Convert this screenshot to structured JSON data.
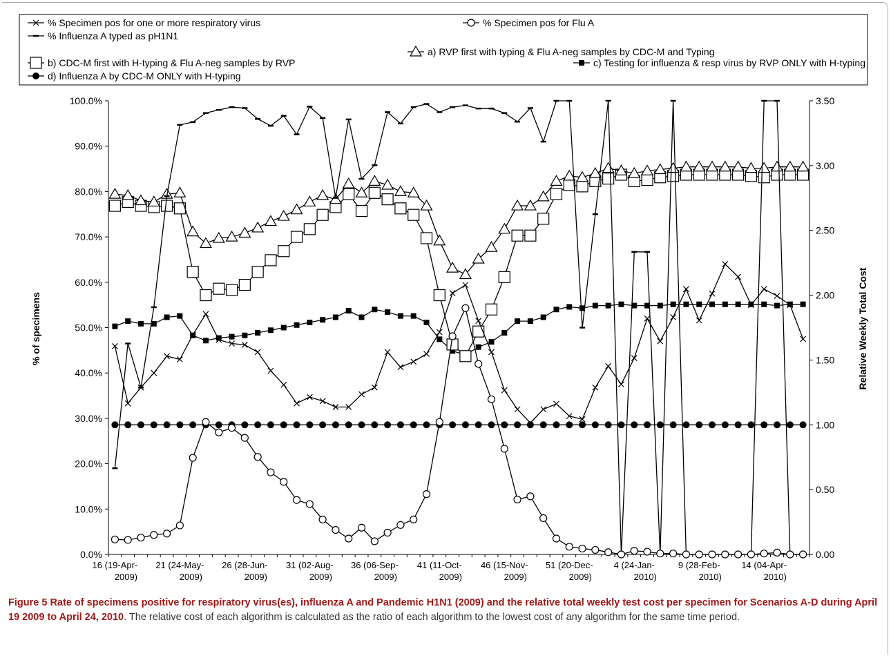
{
  "chart_data": {
    "type": "line",
    "ylabel": "% of specimens",
    "y2label": "Relative Weekly Total Cost",
    "ylim": [
      0,
      100
    ],
    "y2lim": [
      0,
      3.5
    ],
    "yticks": [
      "0.0%",
      "10.0%",
      "20.0%",
      "30.0%",
      "40.0%",
      "50.0%",
      "60.0%",
      "70.0%",
      "80.0%",
      "90.0%",
      "100.0%"
    ],
    "y2ticks": [
      "0.00",
      "0.50",
      "1.00",
      "1.50",
      "2.00",
      "2.50",
      "3.00",
      "3.50"
    ],
    "x": [
      16,
      17,
      18,
      19,
      20,
      21,
      22,
      23,
      24,
      25,
      26,
      27,
      28,
      29,
      30,
      31,
      32,
      33,
      34,
      35,
      36,
      37,
      38,
      39,
      40,
      41,
      42,
      43,
      44,
      45,
      46,
      47,
      48,
      49,
      50,
      51,
      52,
      53,
      1,
      2,
      3,
      4,
      5,
      6,
      7,
      8,
      9,
      10,
      11,
      12,
      13,
      14,
      15,
      16
    ],
    "xtick_labels": [
      {
        "index": 0,
        "line1": "16 (19-Apr-",
        "line2": "2009)"
      },
      {
        "index": 5,
        "line1": "21 (24-May-",
        "line2": "2009)"
      },
      {
        "index": 10,
        "line1": "26 (28-Jun-",
        "line2": "2009)"
      },
      {
        "index": 15,
        "line1": "31 (02-Aug-",
        "line2": "2009)"
      },
      {
        "index": 20,
        "line1": "36 (06-Sep-",
        "line2": "2009)"
      },
      {
        "index": 25,
        "line1": "41 (11-Oct-",
        "line2": "2009)"
      },
      {
        "index": 30,
        "line1": "46 (15-Nov-",
        "line2": "2009)"
      },
      {
        "index": 35,
        "line1": "51 (20-Dec-",
        "line2": "2009)"
      },
      {
        "index": 40,
        "line1": "4 (24-Jan-",
        "line2": "2010)"
      },
      {
        "index": 45,
        "line1": "9 (28-Feb-",
        "line2": "2010)"
      },
      {
        "index": 50,
        "line1": "14 (04-Apr-",
        "line2": "2010)"
      }
    ],
    "legend_placement": "top",
    "series": [
      {
        "name": "% Specimen pos for one or more respiratory virus",
        "axis": "left",
        "marker": "x",
        "values": [
          45.9,
          33.3,
          36.8,
          40.0,
          43.7,
          43.0,
          48.4,
          53.0,
          47.3,
          46.5,
          46.2,
          44.6,
          40.5,
          37.4,
          33.3,
          34.7,
          33.8,
          32.5,
          32.5,
          35.3,
          36.8,
          44.6,
          41.3,
          42.5,
          44.2,
          49.0,
          57.6,
          59.4,
          51.5,
          44.6,
          36.2,
          32.0,
          29.0,
          32.0,
          33.2,
          30.5,
          29.8,
          36.8,
          41.5,
          37.5,
          43.3,
          52.0,
          47.0,
          52.3,
          58.5,
          51.6,
          57.5,
          64.0,
          61.2,
          55.0,
          58.5,
          57.0,
          55.0,
          47.5
        ]
      },
      {
        "name": "% Specimen pos for Flu A",
        "axis": "left",
        "marker": "circle-open",
        "values": [
          3.3,
          3.2,
          3.7,
          4.3,
          4.6,
          6.4,
          21.3,
          29.2,
          26.9,
          27.9,
          25.7,
          21.5,
          18.1,
          16.0,
          12.0,
          11.1,
          7.7,
          5.4,
          3.5,
          5.9,
          2.9,
          4.8,
          6.5,
          7.7,
          13.3,
          29.2,
          48.1,
          54.3,
          42.0,
          34.2,
          23.3,
          12.1,
          12.8,
          8.0,
          3.5,
          1.7,
          1.3,
          1.0,
          0.5,
          0.0,
          0.8,
          0.6,
          0.2,
          0.2,
          0.0,
          0.0,
          0.0,
          0.0,
          0.0,
          0.0,
          0.2,
          0.4,
          0.0,
          0.0
        ]
      },
      {
        "name": "% Influenza A typed as pH1N1",
        "axis": "left",
        "marker": "dash",
        "values": [
          19.0,
          46.5,
          36.8,
          54.5,
          79.0,
          94.7,
          95.3,
          97.3,
          98.0,
          98.6,
          98.4,
          96.0,
          94.5,
          96.7,
          92.6,
          98.7,
          96.2,
          78.6,
          95.9,
          82.8,
          85.8,
          97.5,
          95.0,
          98.6,
          99.3,
          97.5,
          98.6,
          99.0,
          98.3,
          98.3,
          97.3,
          95.4,
          98.4,
          91.0,
          100.0,
          100.0,
          50.0,
          75.0,
          100.0,
          0.0,
          66.7,
          66.7,
          0.0,
          100.0,
          0.0,
          0.0,
          0.0,
          0.0,
          0.0,
          0.0,
          100.0,
          100.0,
          0.0,
          0.0
        ]
      },
      {
        "name": "a) RVP first with typing & Flu A-neg samples by CDC-M and Typing",
        "axis": "right",
        "marker": "triangle-open",
        "values": [
          2.78,
          2.77,
          2.73,
          2.72,
          2.78,
          2.79,
          2.49,
          2.4,
          2.44,
          2.45,
          2.48,
          2.52,
          2.57,
          2.61,
          2.66,
          2.72,
          2.77,
          2.74,
          2.86,
          2.79,
          2.88,
          2.85,
          2.8,
          2.79,
          2.69,
          2.42,
          2.21,
          2.16,
          2.28,
          2.37,
          2.51,
          2.69,
          2.69,
          2.76,
          2.88,
          2.92,
          2.91,
          2.94,
          2.98,
          2.96,
          2.94,
          2.96,
          2.97,
          2.98,
          2.99,
          2.99,
          2.99,
          2.99,
          2.99,
          2.98,
          2.98,
          2.99,
          2.99,
          2.99
        ]
      },
      {
        "name": "b) CDC-M first with H-typing & Flu A-neg samples by RVP",
        "axis": "right",
        "marker": "square-open",
        "values": [
          2.69,
          2.72,
          2.69,
          2.68,
          2.69,
          2.67,
          2.18,
          2.0,
          2.05,
          2.04,
          2.08,
          2.18,
          2.27,
          2.34,
          2.45,
          2.51,
          2.62,
          2.68,
          2.78,
          2.65,
          2.79,
          2.74,
          2.67,
          2.62,
          2.44,
          2.0,
          1.62,
          1.53,
          1.72,
          1.89,
          2.14,
          2.46,
          2.46,
          2.59,
          2.78,
          2.85,
          2.84,
          2.88,
          2.9,
          2.93,
          2.88,
          2.89,
          2.91,
          2.92,
          2.93,
          2.93,
          2.93,
          2.93,
          2.93,
          2.92,
          2.91,
          2.93,
          2.93,
          2.93
        ]
      },
      {
        "name": "c) Testing for influenza & resp virus by RVP ONLY with H-typing",
        "axis": "right",
        "marker": "square-filled",
        "values": [
          1.76,
          1.8,
          1.78,
          1.78,
          1.83,
          1.84,
          1.69,
          1.65,
          1.67,
          1.68,
          1.69,
          1.71,
          1.73,
          1.75,
          1.77,
          1.79,
          1.81,
          1.83,
          1.88,
          1.83,
          1.89,
          1.87,
          1.84,
          1.84,
          1.79,
          1.66,
          1.57,
          1.54,
          1.6,
          1.64,
          1.71,
          1.8,
          1.8,
          1.83,
          1.89,
          1.91,
          1.9,
          1.92,
          1.92,
          1.93,
          1.92,
          1.92,
          1.92,
          1.93,
          1.93,
          1.93,
          1.93,
          1.93,
          1.93,
          1.93,
          1.93,
          1.92,
          1.93,
          1.93
        ]
      },
      {
        "name": "d) Influenza A by CDC-M ONLY with H-typing",
        "axis": "right",
        "marker": "circle-filled",
        "values": [
          1,
          1,
          1,
          1,
          1,
          1,
          1,
          1,
          1,
          1,
          1,
          1,
          1,
          1,
          1,
          1,
          1,
          1,
          1,
          1,
          1,
          1,
          1,
          1,
          1,
          1,
          1,
          1,
          1,
          1,
          1,
          1,
          1,
          1,
          1,
          1,
          1,
          1,
          1,
          1,
          1,
          1,
          1,
          1,
          1,
          1,
          1,
          1,
          1,
          1,
          1,
          1,
          1,
          1
        ]
      }
    ]
  },
  "caption": {
    "label": "Figure 5",
    "title": "Rate of specimens positive for respiratory virus(es), influenza A and Pandemic H1N1 (2009) and the relative total weekly test cost per specimen for Scenarios A-D during April 19 2009 to April 24, 2010",
    "body": ". The relative cost of each algorithm is calculated as the ratio of each algorithm to the lowest cost of any algorithm for the same time period."
  }
}
